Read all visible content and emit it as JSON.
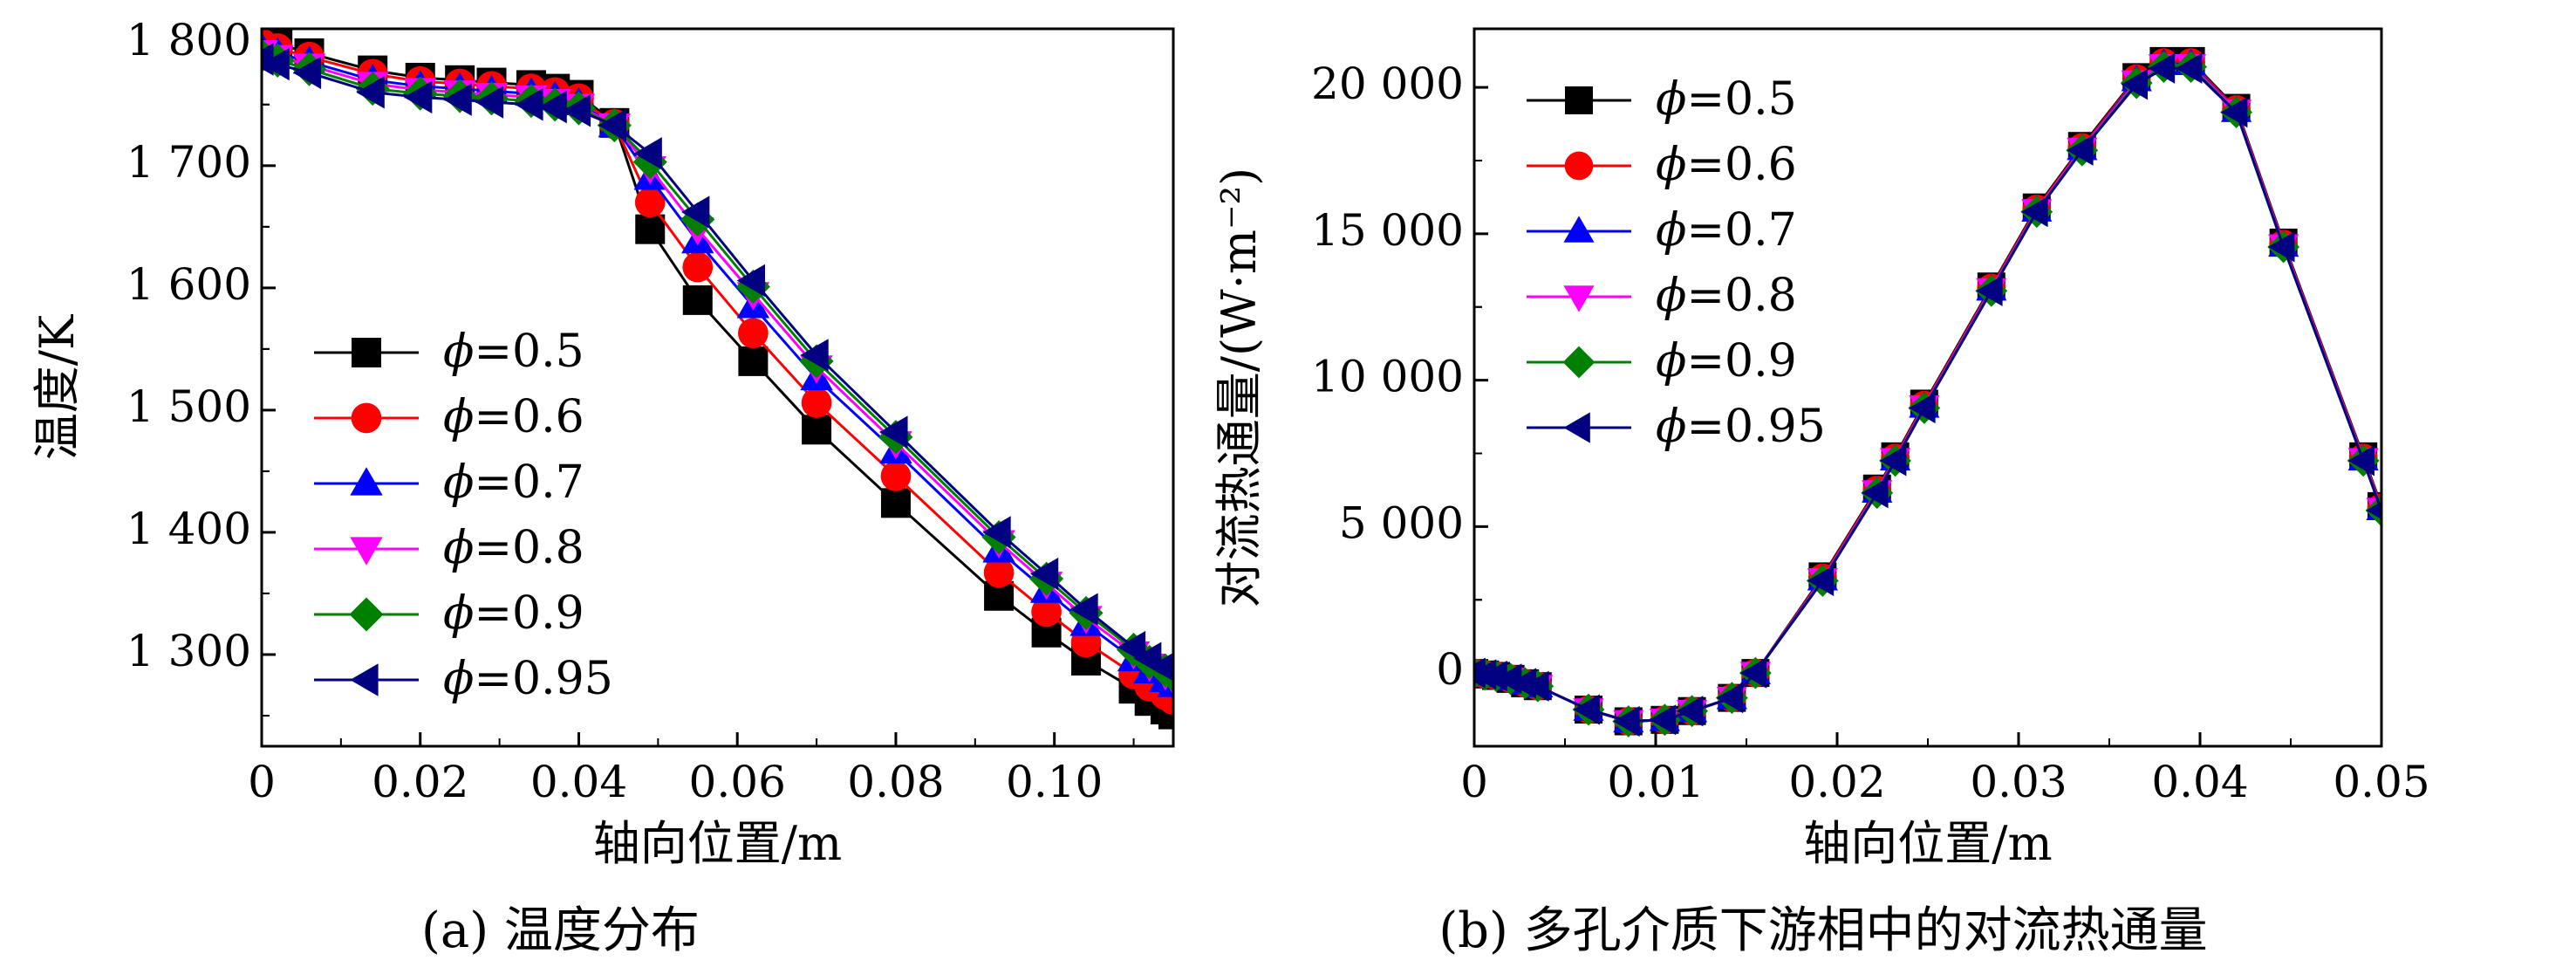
{
  "chart_data": [
    {
      "type": "line",
      "caption": "(a) 温度分布",
      "xlabel": "轴向位置/m",
      "ylabel": "温度/K",
      "xlim": [
        0,
        0.115
      ],
      "ylim": [
        1225,
        1812
      ],
      "xticks": [
        0,
        0.02,
        0.04,
        0.06,
        0.08,
        0.1
      ],
      "xtick_labels": [
        "0",
        "0.02",
        "0.04",
        "0.06",
        "0.08",
        "0.10"
      ],
      "yticks": [
        1300,
        1400,
        1500,
        1600,
        1700,
        1800
      ],
      "ytick_labels": [
        "1 300",
        "1 400",
        "1 500",
        "1 600",
        "1 700",
        "1 800"
      ],
      "grid": false,
      "legend_position": "left-middle",
      "series": [
        {
          "name": "ϕ=0.5",
          "color": "#000000",
          "marker": "square",
          "x": [
            0,
            0.002,
            0.006,
            0.014,
            0.02,
            0.025,
            0.029,
            0.034,
            0.037,
            0.04,
            0.0445,
            0.049,
            0.055,
            0.062,
            0.07,
            0.08,
            0.093,
            0.099,
            0.104,
            0.11,
            0.112,
            0.114,
            0.115
          ],
          "y": [
            1805,
            1800,
            1792,
            1778,
            1772,
            1770,
            1768,
            1766,
            1763,
            1758,
            1735,
            1648,
            1590,
            1540,
            1484,
            1424,
            1348,
            1318,
            1295,
            1272,
            1262,
            1255,
            1251
          ]
        },
        {
          "name": "ϕ=0.6",
          "color": "#ff0000",
          "marker": "circle",
          "x": [
            0,
            0.002,
            0.006,
            0.014,
            0.02,
            0.025,
            0.029,
            0.034,
            0.037,
            0.04,
            0.0445,
            0.049,
            0.055,
            0.062,
            0.07,
            0.08,
            0.093,
            0.099,
            0.104,
            0.11,
            0.112,
            0.114,
            0.115
          ],
          "y": [
            1800,
            1796,
            1789,
            1775,
            1769,
            1767,
            1765,
            1763,
            1760,
            1755,
            1734,
            1670,
            1617,
            1563,
            1506,
            1446,
            1367,
            1335,
            1310,
            1284,
            1274,
            1267,
            1263
          ]
        },
        {
          "name": "ϕ=0.7",
          "color": "#0000ff",
          "marker": "triangle-up",
          "x": [
            0,
            0.002,
            0.006,
            0.014,
            0.02,
            0.025,
            0.029,
            0.034,
            0.037,
            0.04,
            0.0445,
            0.049,
            0.055,
            0.062,
            0.07,
            0.08,
            0.093,
            0.099,
            0.104,
            0.11,
            0.112,
            0.114,
            0.115
          ],
          "y": [
            1796,
            1792,
            1785,
            1770,
            1765,
            1763,
            1761,
            1759,
            1756,
            1751,
            1733,
            1690,
            1638,
            1585,
            1526,
            1466,
            1385,
            1352,
            1325,
            1296,
            1286,
            1279,
            1275
          ]
        },
        {
          "name": "ϕ=0.8",
          "color": "#ff00ff",
          "marker": "triangle-down",
          "x": [
            0,
            0.002,
            0.006,
            0.014,
            0.02,
            0.025,
            0.029,
            0.034,
            0.037,
            0.04,
            0.0445,
            0.049,
            0.055,
            0.062,
            0.07,
            0.08,
            0.093,
            0.099,
            0.104,
            0.11,
            0.112,
            0.114,
            0.115
          ],
          "y": [
            1793,
            1789,
            1782,
            1767,
            1762,
            1760,
            1758,
            1756,
            1753,
            1749,
            1733,
            1698,
            1648,
            1595,
            1535,
            1473,
            1392,
            1358,
            1330,
            1301,
            1291,
            1284,
            1280
          ]
        },
        {
          "name": "ϕ=0.9",
          "color": "#008000",
          "marker": "diamond",
          "x": [
            0,
            0.002,
            0.006,
            0.014,
            0.02,
            0.025,
            0.029,
            0.034,
            0.037,
            0.04,
            0.0445,
            0.049,
            0.055,
            0.062,
            0.07,
            0.08,
            0.093,
            0.099,
            0.104,
            0.11,
            0.112,
            0.114,
            0.115
          ],
          "y": [
            1790,
            1786,
            1779,
            1763,
            1759,
            1757,
            1755,
            1753,
            1750,
            1747,
            1733,
            1703,
            1656,
            1601,
            1540,
            1478,
            1396,
            1362,
            1334,
            1304,
            1294,
            1287,
            1283
          ]
        },
        {
          "name": "ϕ=0.95",
          "color": "#000080",
          "marker": "triangle-left",
          "x": [
            0,
            0.002,
            0.006,
            0.014,
            0.02,
            0.025,
            0.029,
            0.034,
            0.037,
            0.04,
            0.0445,
            0.049,
            0.055,
            0.062,
            0.07,
            0.08,
            0.093,
            0.099,
            0.104,
            0.11,
            0.112,
            0.114,
            0.115
          ],
          "y": [
            1787,
            1783,
            1776,
            1760,
            1756,
            1754,
            1752,
            1750,
            1748,
            1745,
            1733,
            1710,
            1662,
            1606,
            1545,
            1482,
            1400,
            1366,
            1337,
            1306,
            1297,
            1290,
            1286
          ]
        }
      ]
    },
    {
      "type": "line",
      "caption": "(b) 多孔介质下游相中的对流热通量",
      "xlabel": "轴向位置/m",
      "ylabel": "对流热通量/(W·m⁻²)",
      "xlim": [
        0,
        0.05
      ],
      "ylim": [
        -2500,
        22000
      ],
      "xticks": [
        0,
        0.01,
        0.02,
        0.03,
        0.04,
        0.05
      ],
      "xtick_labels": [
        "0",
        "0.01",
        "0.02",
        "0.03",
        "0.04",
        "0.05"
      ],
      "yticks": [
        0,
        5000,
        10000,
        15000,
        20000
      ],
      "ytick_labels": [
        "0",
        "5 000",
        "10 000",
        "15 000",
        "20 000"
      ],
      "grid": false,
      "legend_position": "top-left",
      "series": [
        {
          "name": "ϕ=0.5",
          "color": "#000000",
          "marker": "square",
          "x": [
            0,
            0.0006,
            0.0012,
            0.002,
            0.0028,
            0.0035,
            0.0063,
            0.0085,
            0.0105,
            0.012,
            0.0142,
            0.0155,
            0.0192,
            0.0222,
            0.0232,
            0.0248,
            0.0285,
            0.031,
            0.0335,
            0.0365,
            0.038,
            0.0395,
            0.042,
            0.0446,
            0.049,
            0.05
          ],
          "y": [
            0,
            -50,
            -100,
            -200,
            -350,
            -450,
            -1250,
            -1650,
            -1600,
            -1300,
            -850,
            0,
            3300,
            6300,
            7400,
            9200,
            13200,
            15900,
            18000,
            20350,
            20900,
            20900,
            19300,
            14700,
            7400,
            5700
          ]
        },
        {
          "name": "ϕ=0.6",
          "color": "#ff0000",
          "marker": "circle",
          "x": [
            0,
            0.0006,
            0.0012,
            0.002,
            0.0028,
            0.0035,
            0.0063,
            0.0085,
            0.0105,
            0.012,
            0.0142,
            0.0155,
            0.0192,
            0.0222,
            0.0232,
            0.0248,
            0.0285,
            0.031,
            0.0335,
            0.0365,
            0.038,
            0.0395,
            0.042,
            0.0446,
            0.049,
            0.05
          ],
          "y": [
            0,
            -50,
            -100,
            -200,
            -350,
            -450,
            -1250,
            -1650,
            -1600,
            -1300,
            -850,
            0,
            3250,
            6250,
            7350,
            9150,
            13150,
            15850,
            17950,
            20300,
            20850,
            20850,
            19250,
            14650,
            7350,
            5650
          ]
        },
        {
          "name": "ϕ=0.7",
          "color": "#0000ff",
          "marker": "triangle-up",
          "x": [
            0,
            0.0006,
            0.0012,
            0.002,
            0.0028,
            0.0035,
            0.0063,
            0.0085,
            0.0105,
            0.012,
            0.0142,
            0.0155,
            0.0192,
            0.0222,
            0.0232,
            0.0248,
            0.0285,
            0.031,
            0.0335,
            0.0365,
            0.038,
            0.0395,
            0.042,
            0.0446,
            0.049,
            0.05
          ],
          "y": [
            0,
            -50,
            -100,
            -200,
            -350,
            -450,
            -1250,
            -1650,
            -1600,
            -1300,
            -850,
            0,
            3200,
            6200,
            7300,
            9100,
            13100,
            15800,
            17900,
            20250,
            20800,
            20800,
            19200,
            14600,
            7300,
            5600
          ]
        },
        {
          "name": "ϕ=0.8",
          "color": "#ff00ff",
          "marker": "triangle-down",
          "x": [
            0,
            0.0006,
            0.0012,
            0.002,
            0.0028,
            0.0035,
            0.0063,
            0.0085,
            0.0105,
            0.012,
            0.0142,
            0.0155,
            0.0192,
            0.0222,
            0.0232,
            0.0248,
            0.0285,
            0.031,
            0.0335,
            0.0365,
            0.038,
            0.0395,
            0.042,
            0.0446,
            0.049,
            0.05
          ],
          "y": [
            0,
            -50,
            -100,
            -200,
            -350,
            -450,
            -1250,
            -1650,
            -1600,
            -1300,
            -850,
            0,
            3200,
            6200,
            7300,
            9100,
            13100,
            15800,
            17900,
            20200,
            20750,
            20750,
            19200,
            14600,
            7300,
            5600
          ]
        },
        {
          "name": "ϕ=0.9",
          "color": "#008000",
          "marker": "diamond",
          "x": [
            0,
            0.0006,
            0.0012,
            0.002,
            0.0028,
            0.0035,
            0.0063,
            0.0085,
            0.0105,
            0.012,
            0.0142,
            0.0155,
            0.0192,
            0.0222,
            0.0232,
            0.0248,
            0.0285,
            0.031,
            0.0335,
            0.0365,
            0.038,
            0.0395,
            0.042,
            0.0446,
            0.049,
            0.05
          ],
          "y": [
            0,
            -50,
            -100,
            -200,
            -350,
            -450,
            -1250,
            -1650,
            -1600,
            -1300,
            -850,
            0,
            3150,
            6150,
            7250,
            9050,
            13050,
            15750,
            17850,
            20150,
            20700,
            20700,
            19150,
            14550,
            7250,
            5550
          ]
        },
        {
          "name": "ϕ=0.95",
          "color": "#000080",
          "marker": "triangle-left",
          "x": [
            0,
            0.0006,
            0.0012,
            0.002,
            0.0028,
            0.0035,
            0.0063,
            0.0085,
            0.0105,
            0.012,
            0.0142,
            0.0155,
            0.0192,
            0.0222,
            0.0232,
            0.0248,
            0.0285,
            0.031,
            0.0335,
            0.0365,
            0.038,
            0.0395,
            0.042,
            0.0446,
            0.049,
            0.05
          ],
          "y": [
            0,
            -50,
            -100,
            -200,
            -350,
            -450,
            -1250,
            -1650,
            -1600,
            -1300,
            -850,
            0,
            3150,
            6150,
            7250,
            9050,
            13050,
            15750,
            17850,
            20100,
            20650,
            20650,
            19150,
            14550,
            7250,
            5550
          ]
        }
      ]
    }
  ]
}
